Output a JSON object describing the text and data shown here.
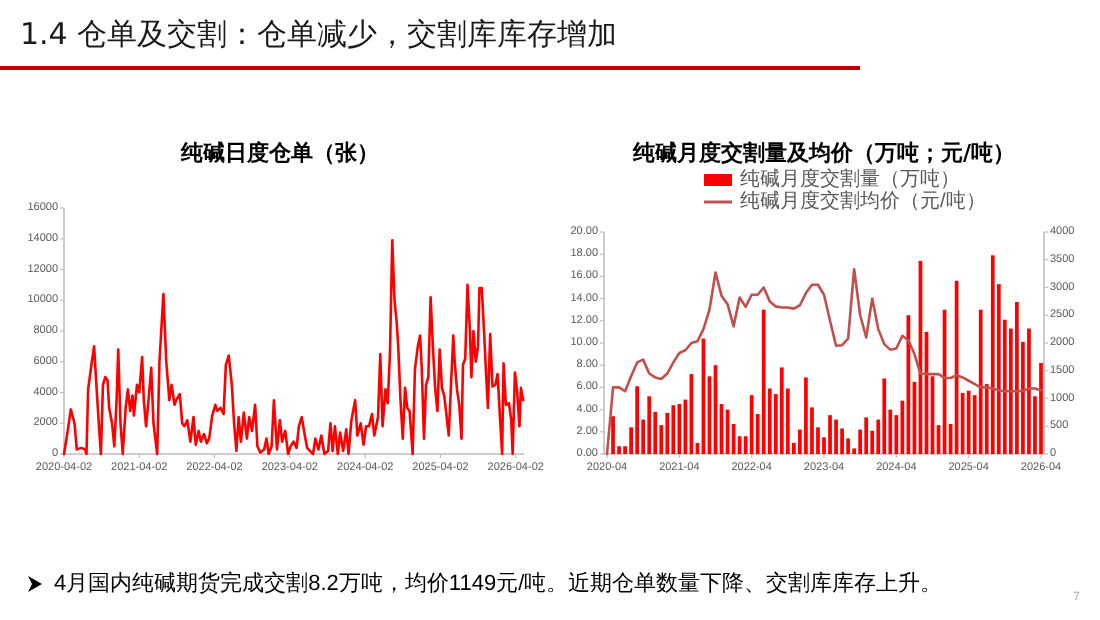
{
  "chart_data": [
    {
      "type": "line",
      "title": "纯碱日度仓单（张）",
      "color": "#ff0000",
      "x": [
        "2020-04-02",
        "2020-04-20",
        "2020-05-05",
        "2020-05-23",
        "2020-06-03",
        "2020-06-25",
        "2020-07-13",
        "2020-07-20",
        "2020-07-28",
        "2020-08-15",
        "2020-08-26",
        "2020-09-06",
        "2020-09-20",
        "2020-09-28",
        "2020-10-08",
        "2020-10-19",
        "2020-10-30",
        "2020-11-07",
        "2020-11-21",
        "2020-12-02",
        "2020-12-13",
        "2020-12-21",
        "2021-01-01",
        "2021-01-12",
        "2021-01-26",
        "2021-02-06",
        "2021-02-17",
        "2021-02-28",
        "2021-03-07",
        "2021-03-22",
        "2021-04-02",
        "2021-04-16",
        "2021-04-24",
        "2021-05-05",
        "2021-05-19",
        "2021-05-30",
        "2021-06-10",
        "2021-06-28",
        "2021-07-09",
        "2021-07-28",
        "2021-08-11",
        "2021-08-26",
        "2021-09-06",
        "2021-09-20",
        "2021-09-28",
        "2021-10-16",
        "2021-10-27",
        "2021-11-07",
        "2021-11-21",
        "2021-12-06",
        "2021-12-21",
        "2022-01-01",
        "2022-01-15",
        "2022-01-26",
        "2022-02-10",
        "2022-02-24",
        "2022-03-07",
        "2022-03-22",
        "2022-04-06",
        "2022-04-16",
        "2022-05-01",
        "2022-05-16",
        "2022-05-27",
        "2022-06-10",
        "2022-06-25",
        "2022-07-06",
        "2022-07-17",
        "2022-07-28",
        "2022-08-08",
        "2022-08-22",
        "2022-09-06",
        "2022-09-17",
        "2022-10-01",
        "2022-10-16",
        "2022-10-27",
        "2022-11-10",
        "2022-11-29",
        "2022-12-10",
        "2022-12-21",
        "2023-01-04",
        "2023-01-15",
        "2023-01-30",
        "2023-02-13",
        "2023-02-24",
        "2023-03-11",
        "2023-03-25",
        "2023-04-06",
        "2023-04-20",
        "2023-05-05",
        "2023-05-16",
        "2023-05-30",
        "2023-06-14",
        "2023-06-25",
        "2023-07-09",
        "2023-07-24",
        "2023-08-04",
        "2023-08-19",
        "2023-09-02",
        "2023-09-17",
        "2023-10-05",
        "2023-10-16",
        "2023-10-27",
        "2023-11-07",
        "2023-11-21",
        "2023-12-02",
        "2023-12-17",
        "2024-01-01",
        "2024-01-12",
        "2024-01-26",
        "2024-02-13",
        "2024-02-24",
        "2024-03-11",
        "2024-03-25",
        "2024-04-06",
        "2024-04-20",
        "2024-05-05",
        "2024-05-16",
        "2024-06-03",
        "2024-06-14",
        "2024-06-25",
        "2024-07-09",
        "2024-07-20",
        "2024-07-31",
        "2024-08-11",
        "2024-08-22",
        "2024-09-02",
        "2024-09-09",
        "2024-09-20",
        "2024-10-01",
        "2024-10-12",
        "2024-10-23",
        "2024-11-03",
        "2024-11-18",
        "2024-11-29",
        "2024-12-13",
        "2024-12-24",
        "2025-01-01",
        "2025-01-12",
        "2025-01-22",
        "2025-02-02",
        "2025-02-13",
        "2025-02-24",
        "2025-03-07",
        "2025-03-18",
        "2025-03-29",
        "2025-04-09",
        "2025-04-20",
        "2025-04-27",
        "2025-05-12",
        "2025-05-23",
        "2025-06-03",
        "2025-06-10",
        "2025-06-21",
        "2025-07-02",
        "2025-07-13",
        "2025-07-20",
        "2025-07-31",
        "2025-08-11",
        "2025-08-22",
        "2025-08-30",
        "2025-09-09",
        "2025-09-20",
        "2025-10-01",
        "2025-10-08",
        "2025-10-19",
        "2025-10-30",
        "2025-11-10",
        "2025-11-18",
        "2025-11-29",
        "2025-12-10",
        "2025-12-24",
        "2026-01-04",
        "2026-01-15",
        "2026-01-26",
        "2026-02-02",
        "2026-02-13",
        "2026-02-28",
        "2026-03-11",
        "2026-03-18",
        "2026-03-29",
        "2026-04-09",
        "2026-04-20",
        "2026-04-27",
        "2026-05-08"
      ],
      "values": [
        0,
        1500,
        2900,
        2000,
        300,
        400,
        300,
        0,
        4200,
        6000,
        7000,
        4500,
        1500,
        0,
        4500,
        5000,
        4800,
        3000,
        2000,
        500,
        3500,
        6800,
        2000,
        0,
        3000,
        4200,
        2800,
        3800,
        2500,
        4500,
        4000,
        6300,
        3500,
        1800,
        3800,
        5600,
        2000,
        0,
        6000,
        10400,
        6000,
        3500,
        4500,
        3200,
        3500,
        3900,
        2000,
        1800,
        2200,
        800,
        2400,
        600,
        1500,
        800,
        1300,
        700,
        1000,
        2500,
        3200,
        2800,
        3000,
        2600,
        5800,
        6400,
        4500,
        2000,
        200,
        2400,
        800,
        2700,
        1000,
        2400,
        1500,
        3200,
        500,
        100,
        300,
        1000,
        0,
        500,
        3500,
        300,
        2200,
        800,
        1500,
        0,
        500,
        800,
        400,
        1800,
        2400,
        1200,
        400,
        200,
        0,
        1000,
        300,
        1200,
        0,
        200,
        2000,
        200,
        1800,
        0,
        1400,
        200,
        1600,
        0,
        2200,
        3500,
        1200,
        2000,
        600,
        1800,
        1800,
        2600,
        1200,
        2400,
        6500,
        1800,
        4200,
        3300,
        6600,
        13900,
        10000,
        8500,
        7000,
        3500,
        1000,
        4300,
        3000,
        2800,
        0,
        5500,
        7000,
        7700,
        5600,
        1000,
        4500,
        5000,
        10200,
        7000,
        4300,
        2800,
        6800,
        4300,
        3800,
        3000,
        1200,
        4500,
        7700,
        6000,
        4200,
        3200,
        1000,
        5800,
        6200,
        11000,
        8200,
        5000,
        8000,
        6000,
        7000,
        10800,
        10800,
        8000,
        5000,
        3000,
        7800,
        4400,
        4500,
        5200,
        2500,
        0,
        5900,
        3200,
        3300,
        2200,
        0,
        5300,
        4000,
        1800,
        4300,
        3500
      ],
      "xlim": [
        "2020-04-02",
        "2026-05-12"
      ],
      "xticks": [
        "2020-04-02",
        "2021-04-02",
        "2022-04-02",
        "2023-04-02",
        "2024-04-02",
        "2025-04-02",
        "2026-04-02"
      ],
      "ylim": [
        0,
        16000
      ],
      "yticks": [
        0,
        2000,
        4000,
        6000,
        8000,
        10000,
        12000,
        14000,
        16000
      ]
    },
    {
      "type": "bar",
      "title": "纯碱月度交割量及均价（万吨；元/吨）",
      "legend": "top",
      "categories": [
        "2020-04",
        null,
        null,
        null,
        null,
        null,
        null,
        null,
        null,
        null,
        null,
        null,
        "2021-04",
        null,
        null,
        null,
        null,
        null,
        null,
        null,
        null,
        null,
        null,
        null,
        "2022-04",
        null,
        null,
        null,
        null,
        null,
        null,
        null,
        null,
        null,
        null,
        null,
        "2023-04",
        null,
        null,
        null,
        null,
        null,
        null,
        null,
        null,
        null,
        null,
        null,
        "2024-04",
        null,
        null,
        null,
        null,
        null,
        null,
        null,
        null,
        null,
        null,
        null,
        "2025-04",
        null,
        null,
        null,
        null,
        null,
        null,
        null,
        null,
        null,
        null,
        null,
        "2026-04"
      ],
      "series": [
        {
          "name": "纯碱月度交割量（万吨）",
          "color": "#ff0000",
          "values": [
            0,
            3.4,
            0.7,
            0.7,
            2.4,
            6.1,
            3.1,
            5.2,
            3.8,
            2.6,
            3.7,
            4.4,
            4.5,
            4.9,
            7.2,
            1.0,
            10.4,
            7.0,
            8.0,
            4.5,
            4.0,
            2.7,
            1.6,
            1.6,
            5.3,
            3.6,
            13.0,
            5.9,
            5.4,
            7.8,
            5.9,
            1.0,
            2.2,
            6.9,
            4.2,
            2.4,
            1.5,
            3.5,
            3.1,
            2.3,
            1.4,
            0.5,
            2.2,
            3.3,
            2.1,
            3.1,
            6.8,
            4.0,
            3.5,
            4.8,
            12.5,
            6.5,
            17.4,
            11.0,
            7.0,
            2.6,
            13.0,
            2.7,
            15.6,
            5.5,
            5.7,
            5.3,
            13.0,
            6.3,
            17.9,
            15.3,
            12.1,
            11.3,
            13.7,
            10.1,
            11.3,
            5.2,
            8.2
          ]
        },
        {
          "name": "纯碱月度交割均价（元/吨）",
          "type": "line",
          "axis": "y2",
          "color": "#c0504d",
          "values": [
            0,
            1200,
            1200,
            1130,
            1400,
            1650,
            1700,
            1450,
            1380,
            1350,
            1450,
            1650,
            1820,
            1870,
            2000,
            2030,
            2250,
            2600,
            3270,
            2850,
            2700,
            2300,
            2820,
            2650,
            2870,
            2870,
            3000,
            2750,
            2660,
            2640,
            2640,
            2620,
            2680,
            2900,
            3050,
            3050,
            2870,
            2400,
            1950,
            1960,
            2080,
            3330,
            2500,
            2100,
            2800,
            2250,
            1980,
            1880,
            1900,
            2130,
            2050,
            1800,
            1450,
            1440,
            1440,
            1440,
            1370,
            1370,
            1420,
            1380,
            1320,
            1260,
            1200,
            1200,
            1180,
            1150,
            1130,
            1130,
            1130,
            1140,
            1180,
            1180,
            1150
          ]
        }
      ],
      "ylim": [
        0,
        20
      ],
      "yticks": [
        {
          "value": 0,
          "label": "0.00"
        },
        {
          "value": 2,
          "label": "2.00"
        },
        {
          "value": 4,
          "label": "4.00"
        },
        {
          "value": 6,
          "label": "6.00"
        },
        {
          "value": 8,
          "label": "8.00"
        },
        {
          "value": 10,
          "label": "10.00"
        },
        {
          "value": 12,
          "label": "12.00"
        },
        {
          "value": 14,
          "label": "14.00"
        },
        {
          "value": 16,
          "label": "16.00"
        },
        {
          "value": 18,
          "label": "18.00"
        },
        {
          "value": 20,
          "label": "20.00"
        }
      ],
      "y2lim": [
        0,
        4000
      ],
      "y2ticks": [
        0,
        500,
        1000,
        1500,
        2000,
        2500,
        3000,
        3500,
        4000
      ]
    },
    {
      "type": "other",
      "title": "1.4 仓单及交割：仓单减少，交割库库存增加",
      "annotations": [
        "4月国内纯碱期货完成交割8.2万吨，均价1149元/吨。近期仓单数量下降、交割库库存上升。",
        "7"
      ]
    }
  ]
}
